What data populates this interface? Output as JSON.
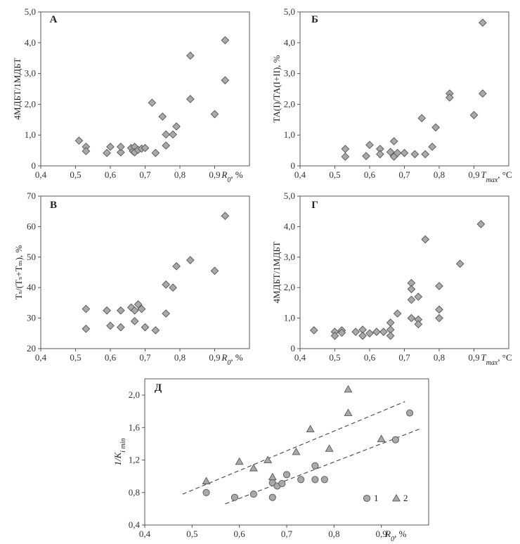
{
  "chart_data": [
    {
      "type": "scatter",
      "panel_label": "А",
      "xlabel": "R",
      "xlabel_sub": "0",
      "xlabel_unit": ", %",
      "ylabel": "4МДБТ/1МДБТ",
      "xlim": [
        0.4,
        1.0
      ],
      "ylim": [
        0,
        5
      ],
      "xticks": [
        "0,4",
        "0,5",
        "0,6",
        "0,7",
        "0,8",
        "0,9"
      ],
      "yticks": [
        "0",
        "1,0",
        "2,0",
        "3,0",
        "4,0",
        "5,0"
      ],
      "marker": "diamond",
      "color": "#a9a9a9",
      "points": [
        [
          0.51,
          0.82
        ],
        [
          0.53,
          0.62
        ],
        [
          0.53,
          0.48
        ],
        [
          0.59,
          0.42
        ],
        [
          0.6,
          0.62
        ],
        [
          0.63,
          0.44
        ],
        [
          0.63,
          0.62
        ],
        [
          0.66,
          0.58
        ],
        [
          0.665,
          0.48
        ],
        [
          0.67,
          0.62
        ],
        [
          0.67,
          0.44
        ],
        [
          0.68,
          0.52
        ],
        [
          0.69,
          0.56
        ],
        [
          0.7,
          0.58
        ],
        [
          0.72,
          2.05
        ],
        [
          0.73,
          0.42
        ],
        [
          0.75,
          1.6
        ],
        [
          0.76,
          1.02
        ],
        [
          0.76,
          0.66
        ],
        [
          0.78,
          1.02
        ],
        [
          0.79,
          1.28
        ],
        [
          0.83,
          3.58
        ],
        [
          0.83,
          2.17
        ],
        [
          0.9,
          1.68
        ],
        [
          0.93,
          4.08
        ],
        [
          0.93,
          2.78
        ]
      ]
    },
    {
      "type": "scatter",
      "panel_label": "Б",
      "xlabel": "T",
      "xlabel_sub": "max",
      "xlabel_unit": ", °C",
      "ylabel": "ТА(I)/ТА(I+II), %",
      "xlim": [
        0.4,
        1.0
      ],
      "ylim": [
        0,
        5
      ],
      "xticks": [
        "0,4",
        "0,5",
        "0,6",
        "0,7",
        "0,8",
        "0,9"
      ],
      "yticks": [
        "0",
        "1,0",
        "2,0",
        "3,0",
        "4,0",
        "5,0"
      ],
      "marker": "diamond",
      "color": "#a9a9a9",
      "points": [
        [
          0.53,
          0.55
        ],
        [
          0.53,
          0.3
        ],
        [
          0.59,
          0.32
        ],
        [
          0.6,
          0.68
        ],
        [
          0.63,
          0.55
        ],
        [
          0.63,
          0.38
        ],
        [
          0.66,
          0.45
        ],
        [
          0.67,
          0.8
        ],
        [
          0.67,
          0.3
        ],
        [
          0.68,
          0.42
        ],
        [
          0.7,
          0.42
        ],
        [
          0.73,
          0.38
        ],
        [
          0.75,
          1.55
        ],
        [
          0.76,
          0.38
        ],
        [
          0.78,
          0.62
        ],
        [
          0.79,
          1.25
        ],
        [
          0.83,
          2.35
        ],
        [
          0.83,
          2.22
        ],
        [
          0.9,
          1.65
        ],
        [
          0.925,
          4.65
        ],
        [
          0.925,
          2.35
        ]
      ]
    },
    {
      "type": "scatter",
      "panel_label": "В",
      "xlabel": "R",
      "xlabel_sub": "0",
      "xlabel_unit": ", %",
      "ylabel": "Tₛ/(Tₛ+Tₘ), %",
      "xlim": [
        0.4,
        1.0
      ],
      "ylim": [
        20,
        70
      ],
      "xticks": [
        "0,4",
        "0,5",
        "0,6",
        "0,7",
        "0,8",
        "0,9"
      ],
      "yticks": [
        "20",
        "30",
        "40",
        "50",
        "60",
        "70"
      ],
      "marker": "diamond",
      "color": "#a9a9a9",
      "points": [
        [
          0.53,
          33
        ],
        [
          0.53,
          26.5
        ],
        [
          0.59,
          32.5
        ],
        [
          0.6,
          27.5
        ],
        [
          0.63,
          32.5
        ],
        [
          0.63,
          27
        ],
        [
          0.66,
          33.5
        ],
        [
          0.67,
          32.5
        ],
        [
          0.67,
          29
        ],
        [
          0.68,
          34.5
        ],
        [
          0.69,
          33
        ],
        [
          0.7,
          27
        ],
        [
          0.73,
          26
        ],
        [
          0.76,
          41
        ],
        [
          0.76,
          31.5
        ],
        [
          0.78,
          40
        ],
        [
          0.79,
          47
        ],
        [
          0.83,
          49
        ],
        [
          0.9,
          45.5
        ],
        [
          0.93,
          63.5
        ]
      ]
    },
    {
      "type": "scatter",
      "panel_label": "Г",
      "xlabel": "T",
      "xlabel_sub": "max",
      "xlabel_unit": ", °C",
      "ylabel": "4МДБТ/1МДБТ",
      "xlim": [
        0.4,
        1.0
      ],
      "ylim": [
        0,
        5
      ],
      "xticks": [
        "0,4",
        "0,5",
        "0,6",
        "0,7",
        "0,8",
        "0,9"
      ],
      "yticks": [
        "0",
        "1,0",
        "2,0",
        "3,0",
        "4,0",
        "5,0"
      ],
      "marker": "diamond",
      "color": "#a9a9a9",
      "points": [
        [
          0.44,
          0.6
        ],
        [
          0.5,
          0.55
        ],
        [
          0.5,
          0.42
        ],
        [
          0.52,
          0.6
        ],
        [
          0.52,
          0.52
        ],
        [
          0.56,
          0.55
        ],
        [
          0.58,
          0.62
        ],
        [
          0.58,
          0.42
        ],
        [
          0.6,
          0.5
        ],
        [
          0.62,
          0.55
        ],
        [
          0.64,
          0.55
        ],
        [
          0.66,
          0.85
        ],
        [
          0.66,
          0.62
        ],
        [
          0.66,
          0.42
        ],
        [
          0.68,
          1.15
        ],
        [
          0.72,
          2.15
        ],
        [
          0.72,
          1.95
        ],
        [
          0.72,
          1.6
        ],
        [
          0.72,
          1.0
        ],
        [
          0.74,
          1.7
        ],
        [
          0.74,
          0.95
        ],
        [
          0.74,
          0.8
        ],
        [
          0.76,
          3.58
        ],
        [
          0.8,
          2.05
        ],
        [
          0.8,
          1.28
        ],
        [
          0.8,
          1.0
        ],
        [
          0.86,
          2.78
        ],
        [
          0.92,
          4.08
        ]
      ]
    },
    {
      "type": "scatter",
      "panel_label": "Д",
      "xlabel": "R",
      "xlabel_sub": "0",
      "xlabel_unit": ", %",
      "ylabel": "1/K",
      "ylabel_sub": "i min",
      "xlim": [
        0.4,
        1.0
      ],
      "ylim": [
        0.4,
        2.2
      ],
      "xticks": [
        "0,4",
        "0,5",
        "0,6",
        "0,7",
        "0,8",
        "0,9"
      ],
      "yticks": [
        "0,4",
        "0,8",
        "1,2",
        "1,6",
        "2,0"
      ],
      "legend_position": "bottom-right",
      "series": [
        {
          "name": "1",
          "marker": "circle",
          "color": "#a9a9a9",
          "points": [
            [
              0.53,
              0.8
            ],
            [
              0.59,
              0.74
            ],
            [
              0.63,
              0.78
            ],
            [
              0.67,
              0.74
            ],
            [
              0.67,
              0.92
            ],
            [
              0.68,
              0.88
            ],
            [
              0.69,
              0.91
            ],
            [
              0.7,
              1.02
            ],
            [
              0.73,
              0.96
            ],
            [
              0.76,
              0.96
            ],
            [
              0.76,
              1.13
            ],
            [
              0.78,
              0.96
            ],
            [
              0.93,
              1.45
            ],
            [
              0.96,
              1.78
            ]
          ],
          "trend": [
            [
              0.57,
              0.66
            ],
            [
              0.98,
              1.58
            ]
          ]
        },
        {
          "name": "2",
          "marker": "triangle",
          "color": "#a9a9a9",
          "points": [
            [
              0.53,
              0.94
            ],
            [
              0.6,
              1.18
            ],
            [
              0.63,
              1.1
            ],
            [
              0.66,
              1.2
            ],
            [
              0.67,
              0.99
            ],
            [
              0.72,
              1.3
            ],
            [
              0.75,
              1.58
            ],
            [
              0.79,
              1.34
            ],
            [
              0.83,
              2.07
            ],
            [
              0.83,
              1.78
            ],
            [
              0.9,
              1.46
            ]
          ],
          "trend": [
            [
              0.48,
              0.78
            ],
            [
              0.95,
              1.92
            ]
          ]
        }
      ]
    }
  ]
}
